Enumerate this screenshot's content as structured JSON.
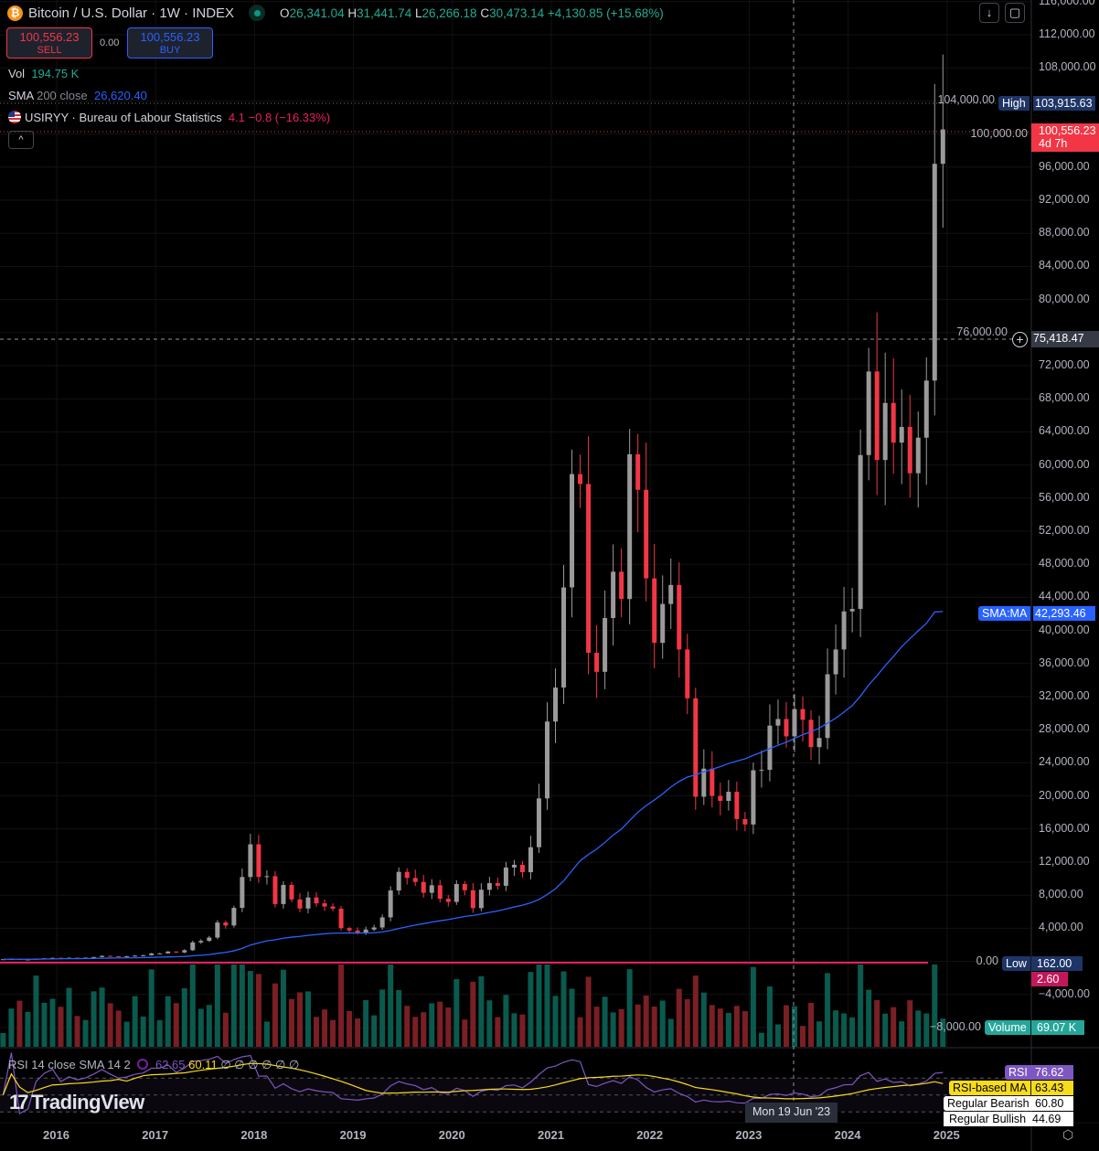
{
  "header": {
    "title": "Bitcoin / U.S. Dollar · 1W · INDEX",
    "ohlc": {
      "o_label": "O",
      "o": "26,341.04",
      "h_label": "H",
      "h": "31,441.74",
      "l_label": "L",
      "l": "26,266.18",
      "c_label": "C",
      "c": "30,473.14",
      "change": "+4,130.85 (+15.68%)"
    },
    "sell_price": "100,556.23",
    "sell_label": "SELL",
    "spread": "0.00",
    "buy_price": "100,556.23",
    "buy_label": "BUY",
    "collapse_icon": "chevron-up-icon"
  },
  "indicators": {
    "vol": {
      "label": "Vol",
      "value": "194.75 K"
    },
    "sma": {
      "label": "SMA",
      "params": "200 close",
      "value": "26,620.40"
    },
    "usiryy": {
      "label": "USIRYY · Bureau of Labour Statistics",
      "value": "4.1",
      "change": "−0.8 (−16.33%)"
    }
  },
  "price_axis": {
    "labels": [
      "116,000.00",
      "112,000.00",
      "108,000.00",
      "104,000.00",
      "100,000.00",
      "96,000.00",
      "92,000.00",
      "88,000.00",
      "84,000.00",
      "80,000.00",
      "76,000.00",
      "72,000.00",
      "68,000.00",
      "64,000.00",
      "60,000.00",
      "56,000.00",
      "52,000.00",
      "48,000.00",
      "44,000.00",
      "40,000.00",
      "36,000.00",
      "32,000.00",
      "28,000.00",
      "24,000.00",
      "20,000.00",
      "16,000.00",
      "12,000.00",
      "8,000.00",
      "4,000.00",
      "0.00",
      "−4,000.00",
      "−8,000.00"
    ],
    "high": {
      "label": "High",
      "value": "103,915.63"
    },
    "last": {
      "value": "100,556.23",
      "countdown": "4d 7h"
    },
    "crosshair": "75,418.47",
    "sma": {
      "label": "SMA:MA",
      "value": "42,293.46"
    },
    "low": {
      "label": "Low",
      "value": "162.00"
    },
    "usiryy": "2.60",
    "volume": {
      "label": "Volume",
      "value": "69.07 K"
    }
  },
  "rsi": {
    "legend": "RSI 14 close SMA 14 2",
    "value": "62.65",
    "ma_value": "60.11",
    "na": "∅ ∅ ∅ ∅ ∅ ∅",
    "tags": [
      {
        "label": "RSI",
        "value": "76.62"
      },
      {
        "label": "RSI-based MA",
        "value": "63.43"
      },
      {
        "label": "Regular Bearish",
        "value": "60.80"
      },
      {
        "label": "Regular Bullish",
        "value": "44.69"
      }
    ]
  },
  "time_axis": {
    "labels": [
      "2016",
      "2017",
      "2018",
      "2019",
      "2020",
      "2021",
      "2022",
      "2023",
      "2024",
      "2025"
    ],
    "crosshair": "Mon 19 Jun '23"
  },
  "brand": "TradingView",
  "colors": {
    "up": "#089981",
    "down": "#f23645",
    "sma": "#2962ff",
    "usiryy": "#e91e63",
    "rsi": "#7e57c2",
    "rsi_ma": "#f7dc1a"
  },
  "chart_data": {
    "type": "candlestick",
    "start": "2015-06",
    "closes": [
      263,
      284,
      230,
      236,
      314,
      377,
      430,
      369,
      437,
      416,
      448,
      531,
      673,
      624,
      575,
      609,
      698,
      742,
      963,
      970,
      1190,
      1080,
      1350,
      2300,
      2480,
      2880,
      4700,
      4340,
      6470,
      10200,
      14150,
      10200,
      10300,
      6930,
      9240,
      7490,
      6390,
      7730,
      7020,
      6630,
      6370,
      4020,
      3740,
      3460,
      3850,
      4100,
      5320,
      8570,
      10820,
      10090,
      9600,
      8290,
      9200,
      7570,
      7190,
      9350,
      8600,
      6440,
      8660,
      9460,
      9140,
      11350,
      11680,
      10780,
      13800,
      19700,
      28990,
      33100,
      45200,
      58900,
      57700,
      37300,
      35000,
      41500,
      47100,
      43800,
      61300,
      57000,
      46300,
      38500,
      43200,
      45500,
      37700,
      31800,
      19900,
      23300,
      20000,
      19400,
      20500,
      17200,
      16550,
      23100,
      23150,
      28500,
      29300,
      27200,
      30500,
      29200,
      25900,
      27000,
      34700,
      37700,
      42300,
      42600,
      61200,
      71300,
      60600,
      67500,
      62700,
      64600,
      59000,
      63300,
      70200,
      96400,
      100556
    ],
    "ylim": [
      -8000,
      116000
    ],
    "high": 103915.63,
    "low": 162.0,
    "sma_last": 42293.46
  }
}
